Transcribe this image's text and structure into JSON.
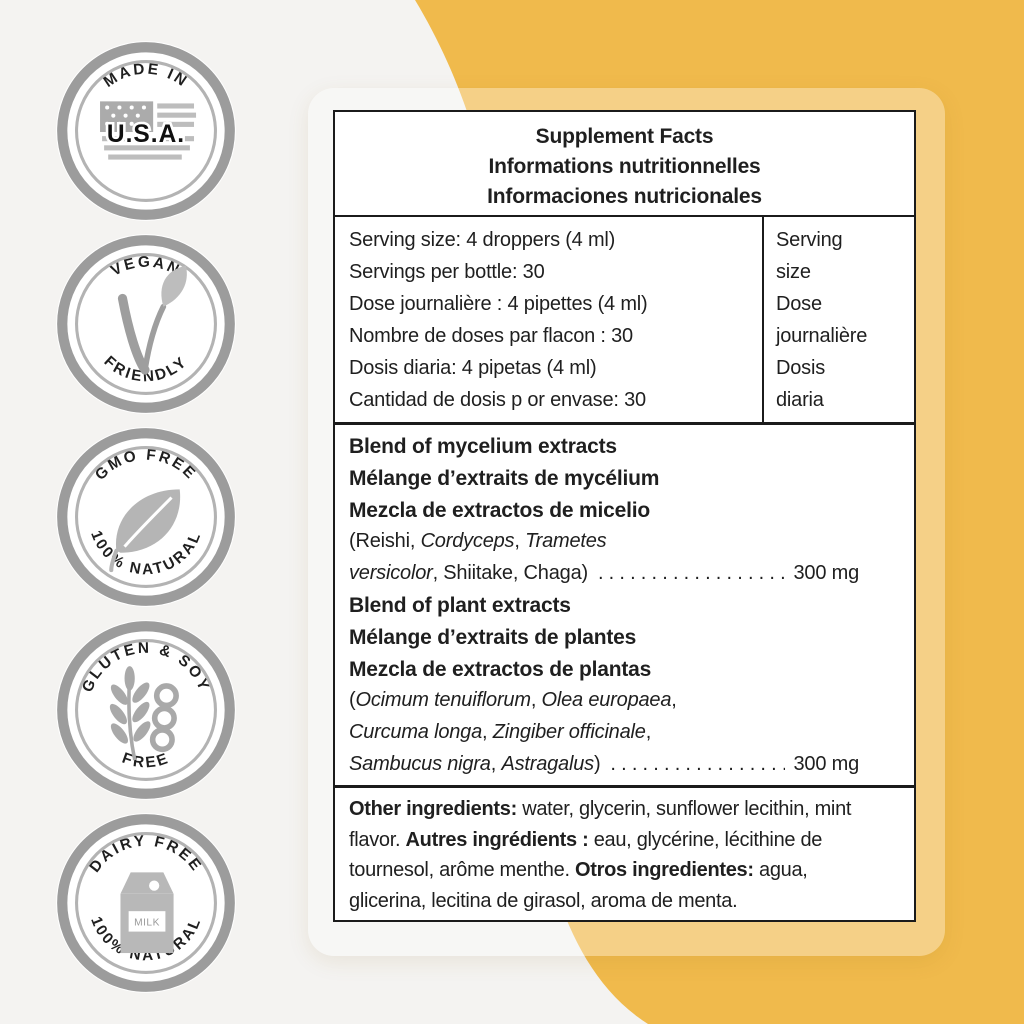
{
  "colors": {
    "accent_yellow": "#f0ba4c",
    "page_gray": "#f4f3f1",
    "ink": "#1b1b1b",
    "badge_ring_gray": "#9c9c9c",
    "badge_icon_gray": "#b0b0b0"
  },
  "badges": [
    {
      "icon": "usa-flag-map-icon",
      "top": "MADE IN",
      "bottom": "",
      "center": "U.S.A."
    },
    {
      "icon": "vegan-leaf-icon",
      "top": "VEGAN",
      "bottom": "FRIENDLY",
      "center": ""
    },
    {
      "icon": "leaf-icon",
      "top": "GMO FREE",
      "bottom": "100% NATURAL",
      "center": ""
    },
    {
      "icon": "wheat-soy-icon",
      "top": "GLUTEN & SOY",
      "bottom": "FREE",
      "center": ""
    },
    {
      "icon": "milk-carton-icon",
      "top": "DAIRY FREE",
      "bottom": "100% NATURAL",
      "center": "",
      "icon_label": "MILK"
    }
  ],
  "panel": {
    "title_lines": [
      "Supplement Facts",
      "Informations nutritionnelles",
      "Informaciones nutricionales"
    ],
    "serving": {
      "left_lines": [
        "Serving size: 4 droppers (4 ml)",
        "Servings per bottle: 30",
        "Dose journalière : 4 pipettes (4 ml)",
        "Nombre de doses par flacon : 30",
        "Dosis diaria: 4 pipetas (4 ml)",
        "Cantidad de dosis p or envase: 30"
      ],
      "right_lines": [
        "Serving",
        "size",
        "Dose",
        "journalière",
        "Dosis",
        "diaria"
      ]
    },
    "dots": ". . . . . . . . . . . . . . . . . . . . . . . . . . . . . .",
    "blends": {
      "mycelium": {
        "bold_lines": [
          "Blend of mycelium extracts",
          "Mélange d’extraits de mycélium",
          "Mezcla de extractos de micelio"
        ],
        "detail_line1": [
          {
            "t": "(Reishi, "
          },
          {
            "t": "Cordyceps",
            "i": true
          },
          {
            "t": ", "
          },
          {
            "t": "Trametes",
            "i": true
          }
        ],
        "detail_line2": [
          {
            "t": "versicolor",
            "i": true
          },
          {
            "t": ", Shiitake, Chaga)"
          }
        ],
        "amount": "300 mg"
      },
      "plant": {
        "bold_lines": [
          "Blend of plant extracts",
          "Mélange d’extraits de plantes",
          "Mezcla de extractos de plantas"
        ],
        "detail_line1": [
          {
            "t": "("
          },
          {
            "t": "Ocimum tenuiflorum",
            "i": true
          },
          {
            "t": ", "
          },
          {
            "t": "Olea europaea",
            "i": true
          },
          {
            "t": ","
          }
        ],
        "detail_line2": [
          {
            "t": "Curcuma longa",
            "i": true
          },
          {
            "t": ", "
          },
          {
            "t": "Zingiber officinale",
            "i": true
          },
          {
            "t": ","
          }
        ],
        "detail_line3": [
          {
            "t": "Sambucus nigra",
            "i": true
          },
          {
            "t": ", "
          },
          {
            "t": "Astragalus",
            "i": true
          },
          {
            "t": ")"
          }
        ],
        "amount": "300 mg"
      }
    },
    "other_ingredients": [
      {
        "t": "Other ingredients:",
        "b": true
      },
      {
        "t": " water, glycerin, sunflower lecithin, mint flavor. "
      },
      {
        "t": "Autres ingrédients :",
        "b": true
      },
      {
        "t": " eau, glycérine, lécithine de tournesol, arôme menthe. "
      },
      {
        "t": "Otros ingredientes:",
        "b": true
      },
      {
        "t": " agua, glicerina, lecitina de girasol, aroma de menta."
      }
    ]
  }
}
